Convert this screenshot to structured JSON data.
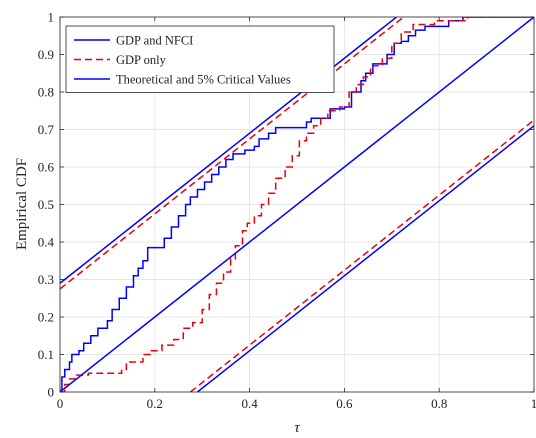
{
  "chart_data": {
    "type": "line",
    "xlabel": "τ",
    "ylabel": "Empirical CDF",
    "xlim": [
      0,
      1
    ],
    "ylim": [
      0,
      1
    ],
    "x_ticks": [
      "0",
      "0.2",
      "0.4",
      "0.6",
      "0.8",
      "1"
    ],
    "y_ticks": [
      "0",
      "0.1",
      "0.2",
      "0.3",
      "0.4",
      "0.5",
      "0.6",
      "0.7",
      "0.8",
      "0.9",
      "1"
    ],
    "grid": true,
    "legend_position": "top-left",
    "colors": {
      "blue": "#0000ff",
      "red": "#e8000b"
    },
    "legend": [
      {
        "label": "GDP and NFCI",
        "color": "#0000ff",
        "dash": "solid"
      },
      {
        "label": "GDP only",
        "color": "#e8000b",
        "dash": "dashed"
      },
      {
        "label": "Theoretical and 5% Critical Values",
        "color": "#0000ff",
        "dash": "solid"
      }
    ],
    "series": [
      {
        "name": "GDP and NFCI",
        "color": "#0000ff",
        "dash": "solid",
        "points": [
          [
            0,
            0
          ],
          [
            0.004,
            0.04
          ],
          [
            0.01,
            0.06
          ],
          [
            0.02,
            0.08
          ],
          [
            0.025,
            0.1
          ],
          [
            0.04,
            0.11
          ],
          [
            0.05,
            0.13
          ],
          [
            0.065,
            0.15
          ],
          [
            0.08,
            0.17
          ],
          [
            0.1,
            0.19
          ],
          [
            0.11,
            0.22
          ],
          [
            0.125,
            0.25
          ],
          [
            0.14,
            0.28
          ],
          [
            0.155,
            0.31
          ],
          [
            0.165,
            0.33
          ],
          [
            0.175,
            0.35
          ],
          [
            0.185,
            0.385
          ],
          [
            0.215,
            0.385
          ],
          [
            0.22,
            0.41
          ],
          [
            0.235,
            0.44
          ],
          [
            0.25,
            0.47
          ],
          [
            0.265,
            0.5
          ],
          [
            0.275,
            0.52
          ],
          [
            0.29,
            0.54
          ],
          [
            0.305,
            0.56
          ],
          [
            0.32,
            0.58
          ],
          [
            0.335,
            0.6
          ],
          [
            0.35,
            0.62
          ],
          [
            0.365,
            0.635
          ],
          [
            0.39,
            0.645
          ],
          [
            0.41,
            0.655
          ],
          [
            0.42,
            0.675
          ],
          [
            0.44,
            0.69
          ],
          [
            0.455,
            0.705
          ],
          [
            0.5,
            0.705
          ],
          [
            0.52,
            0.72
          ],
          [
            0.53,
            0.73
          ],
          [
            0.555,
            0.73
          ],
          [
            0.57,
            0.755
          ],
          [
            0.6,
            0.76
          ],
          [
            0.615,
            0.8
          ],
          [
            0.635,
            0.83
          ],
          [
            0.645,
            0.85
          ],
          [
            0.66,
            0.875
          ],
          [
            0.675,
            0.875
          ],
          [
            0.69,
            0.9
          ],
          [
            0.705,
            0.93
          ],
          [
            0.72,
            0.935
          ],
          [
            0.735,
            0.95
          ],
          [
            0.75,
            0.965
          ],
          [
            0.77,
            0.975
          ],
          [
            0.8,
            0.975
          ],
          [
            0.82,
            0.99
          ],
          [
            0.85,
            1
          ],
          [
            1,
            1
          ]
        ]
      },
      {
        "name": "GDP only",
        "color": "#e8000b",
        "dash": "dashed",
        "points": [
          [
            0,
            0
          ],
          [
            0.01,
            0.02
          ],
          [
            0.02,
            0.035
          ],
          [
            0.035,
            0.045
          ],
          [
            0.06,
            0.05
          ],
          [
            0.13,
            0.06
          ],
          [
            0.14,
            0.08
          ],
          [
            0.165,
            0.08
          ],
          [
            0.175,
            0.1
          ],
          [
            0.19,
            0.11
          ],
          [
            0.215,
            0.125
          ],
          [
            0.24,
            0.14
          ],
          [
            0.26,
            0.17
          ],
          [
            0.28,
            0.185
          ],
          [
            0.3,
            0.22
          ],
          [
            0.315,
            0.26
          ],
          [
            0.33,
            0.29
          ],
          [
            0.345,
            0.32
          ],
          [
            0.36,
            0.355
          ],
          [
            0.37,
            0.39
          ],
          [
            0.385,
            0.43
          ],
          [
            0.395,
            0.45
          ],
          [
            0.41,
            0.47
          ],
          [
            0.425,
            0.5
          ],
          [
            0.44,
            0.53
          ],
          [
            0.455,
            0.57
          ],
          [
            0.475,
            0.6
          ],
          [
            0.49,
            0.63
          ],
          [
            0.505,
            0.67
          ],
          [
            0.52,
            0.69
          ],
          [
            0.535,
            0.71
          ],
          [
            0.55,
            0.73
          ],
          [
            0.565,
            0.75
          ],
          [
            0.59,
            0.76
          ],
          [
            0.61,
            0.8
          ],
          [
            0.625,
            0.82
          ],
          [
            0.64,
            0.84
          ],
          [
            0.655,
            0.87
          ],
          [
            0.68,
            0.89
          ],
          [
            0.7,
            0.93
          ],
          [
            0.72,
            0.96
          ],
          [
            0.745,
            0.98
          ],
          [
            0.79,
            0.99
          ],
          [
            0.86,
            1
          ],
          [
            1,
            1
          ]
        ]
      },
      {
        "name": "Theoretical and 5% Critical Values",
        "color": "#0000ff",
        "dash": "solid",
        "lines": [
          [
            [
              0,
              0
            ],
            [
              1,
              1
            ]
          ],
          [
            [
              0,
              0.29
            ],
            [
              0.71,
              1
            ]
          ],
          [
            [
              0.29,
              0
            ],
            [
              1,
              0.71
            ]
          ]
        ]
      },
      {
        "color": "#e8000b",
        "dash": "dashed",
        "lines": [
          [
            [
              0,
              0.275
            ],
            [
              0.725,
              1
            ]
          ],
          [
            [
              0.275,
              0
            ],
            [
              1,
              0.725
            ]
          ]
        ]
      }
    ]
  }
}
